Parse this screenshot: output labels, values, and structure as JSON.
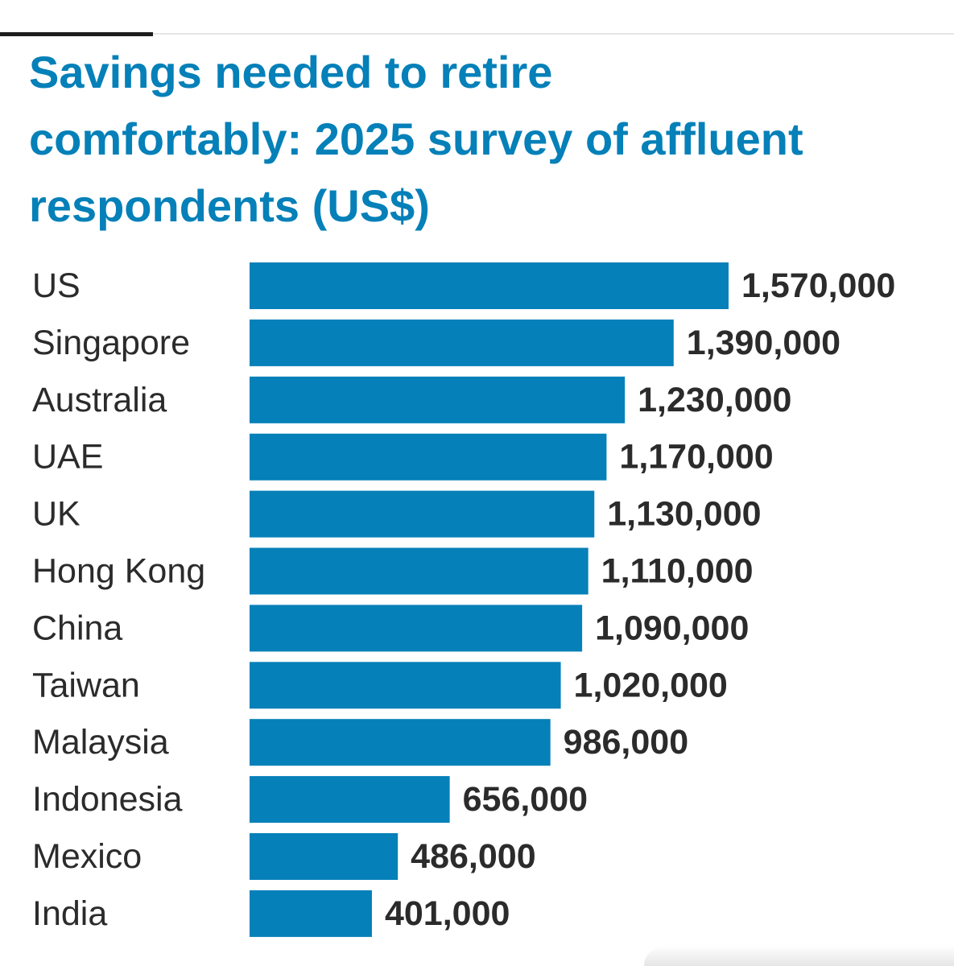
{
  "chart_data": {
    "type": "bar",
    "orientation": "horizontal",
    "title": "Savings needed to retire comfortably: 2025 survey of affluent respondents (US$)",
    "categories": [
      "US",
      "Singapore",
      "Australia",
      "UAE",
      "UK",
      "Hong Kong",
      "China",
      "Taiwan",
      "Malaysia",
      "Indonesia",
      "Mexico",
      "India"
    ],
    "values": [
      1570000,
      1390000,
      1230000,
      1170000,
      1130000,
      1110000,
      1090000,
      1020000,
      986000,
      656000,
      486000,
      401000
    ],
    "value_labels": [
      "1,570,000",
      "1,390,000",
      "1,230,000",
      "1,170,000",
      "1,130,000",
      "1,110,000",
      "1,090,000",
      "1,020,000",
      "986,000",
      "656,000",
      "486,000",
      "401,000"
    ],
    "xlim": [
      0,
      1570000
    ],
    "grid": false,
    "legend": "none",
    "bar_color": "#0580b8"
  }
}
